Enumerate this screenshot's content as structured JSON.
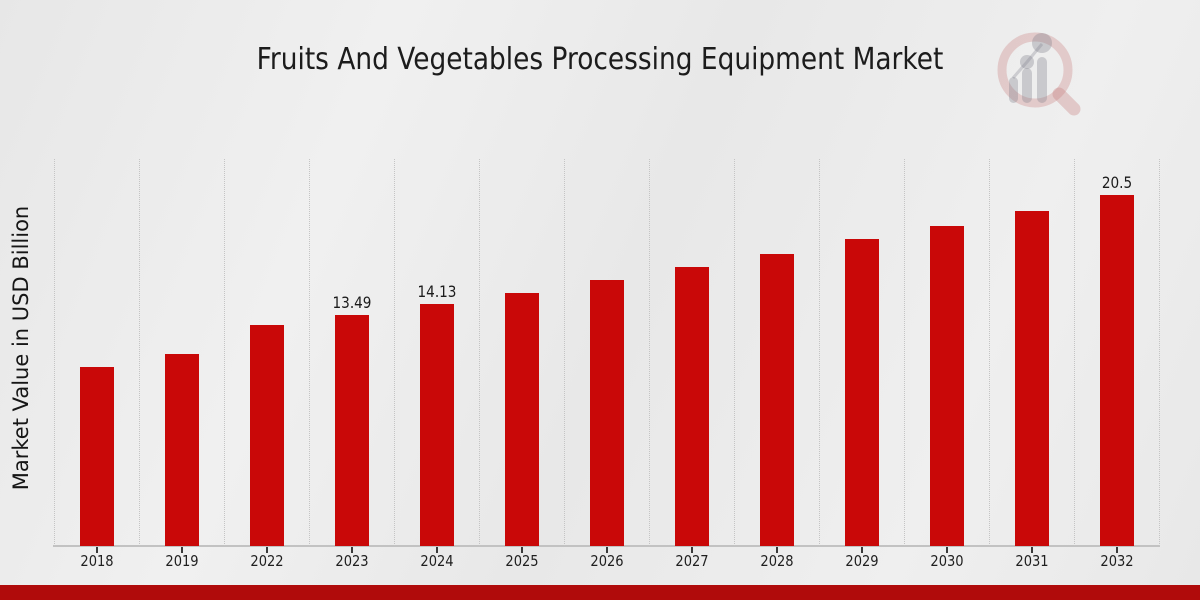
{
  "header": {
    "title": "Fruits And Vegetables Processing Equipment Market"
  },
  "logo": {
    "name": "magnifier-bar-chart-watermark-logo",
    "ring_color": "rgba(198,120,120,0.30)",
    "bars_color": "rgba(125,125,138,0.32)"
  },
  "chart_data": {
    "type": "bar",
    "title": "Fruits And Vegetables Processing Equipment Market",
    "xlabel": "",
    "ylabel": "Market Value in USD Billion",
    "categories": [
      "2018",
      "2019",
      "2022",
      "2023",
      "2024",
      "2025",
      "2026",
      "2027",
      "2028",
      "2029",
      "2030",
      "2031",
      "2032"
    ],
    "values": [
      10.45,
      11.2,
      12.9,
      13.49,
      14.13,
      14.8,
      15.54,
      16.3,
      17.06,
      17.92,
      18.68,
      19.56,
      20.5
    ],
    "data_labels": [
      {
        "category": "2023",
        "text": "13.49"
      },
      {
        "category": "2024",
        "text": "14.13"
      },
      {
        "category": "2032",
        "text": "20.5"
      }
    ],
    "ylim": [
      0,
      22.6
    ],
    "grid": "vertical-dotted-between-categories",
    "legend": "none",
    "bar_color": "#c90808"
  },
  "footer": {
    "banner_color": "#b00b0b"
  }
}
